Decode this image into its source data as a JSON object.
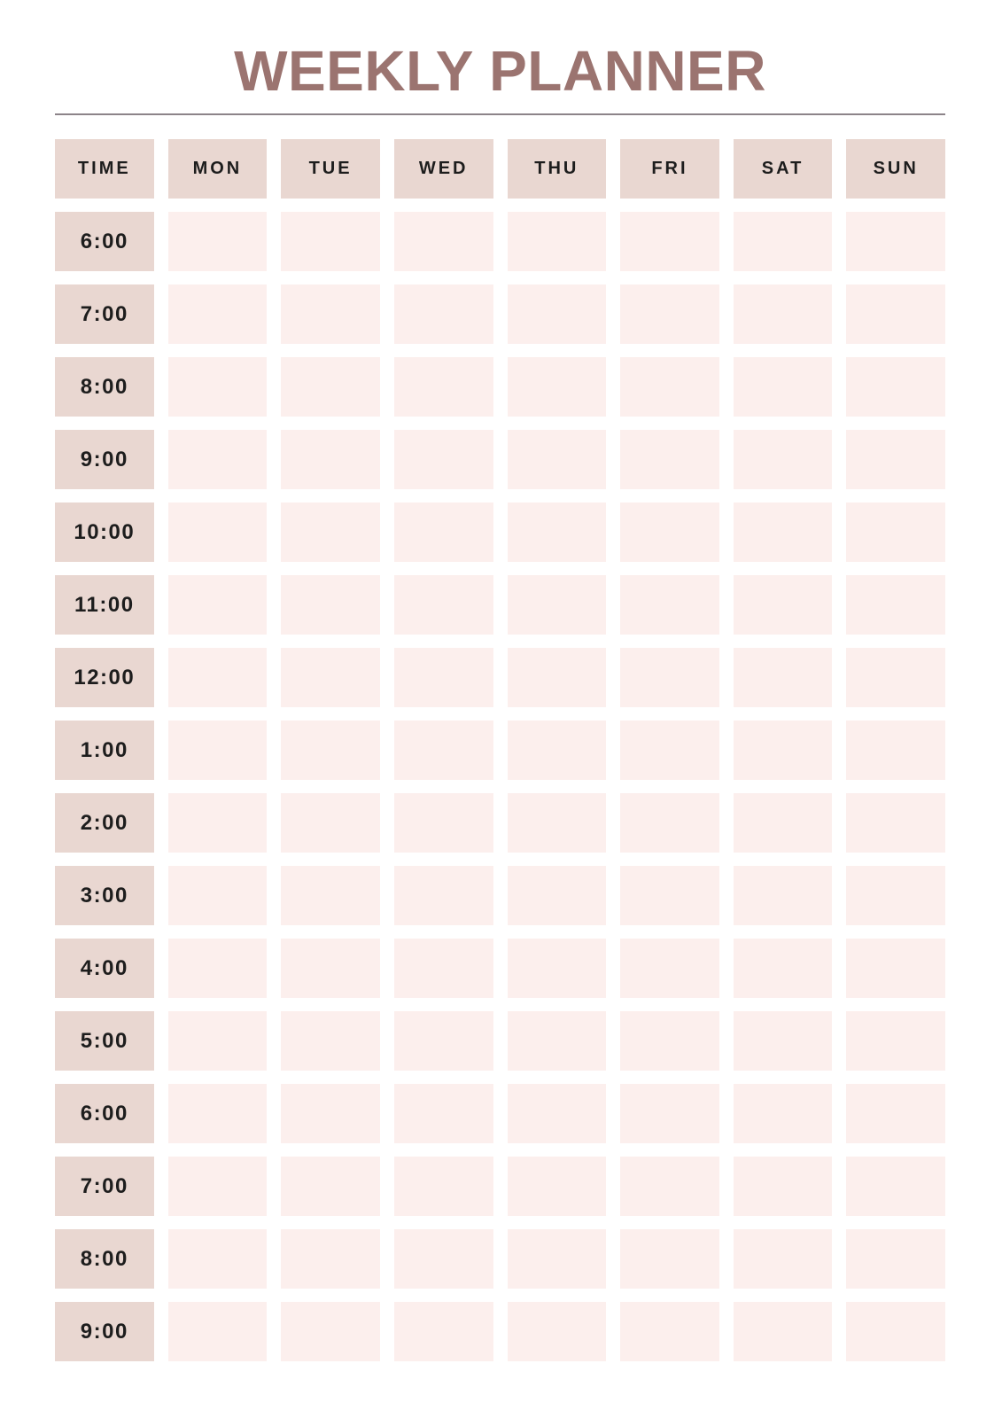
{
  "page": {
    "title": "WEEKLY PLANNER"
  },
  "theme": {
    "background_color": "#ffffff",
    "header_cell_color": "#e9d7d1",
    "slot_cell_color": "#fcefed",
    "title_color": "#9b7470",
    "divider_color": "#8c8489",
    "label_text_color": "#1d1d1d"
  },
  "planner": {
    "column_headers": [
      "TIME",
      "MON",
      "TUE",
      "WED",
      "THU",
      "FRI",
      "SAT",
      "SUN"
    ],
    "time_rows": [
      "6:00",
      "7:00",
      "8:00",
      "9:00",
      "10:00",
      "11:00",
      "12:00",
      "1:00",
      "2:00",
      "3:00",
      "4:00",
      "5:00",
      "6:00",
      "7:00",
      "8:00",
      "9:00"
    ]
  }
}
